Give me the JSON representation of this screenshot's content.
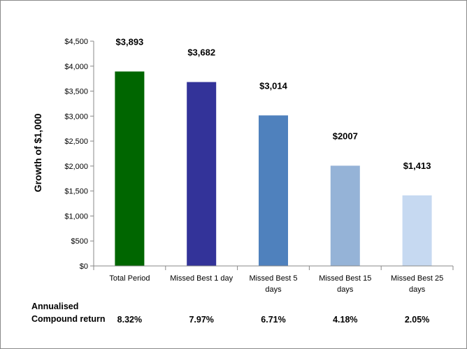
{
  "chart_data": {
    "type": "bar",
    "categories": [
      [
        "Total Period"
      ],
      [
        "Missed Best 1  day"
      ],
      [
        "Missed Best  5",
        "days"
      ],
      [
        "Missed Best 15",
        "days"
      ],
      [
        "Missed Best 25",
        "days"
      ]
    ],
    "values": [
      3893,
      3682,
      3014,
      2007,
      1413
    ],
    "data_labels": [
      "$3,893",
      "$3,682",
      "$3,014",
      "$2007",
      "$1,413"
    ],
    "colors": [
      "#006600",
      "#333399",
      "#4f81bd",
      "#95b3d7",
      "#c6d9f1"
    ],
    "ylabel": "Growth of $1,000",
    "ylim": [
      0,
      4500
    ],
    "yticks": [
      0,
      500,
      1000,
      1500,
      2000,
      2500,
      3000,
      3500,
      4000,
      4500
    ],
    "ytick_labels": [
      "$0",
      "$500",
      "$1,000",
      "$1,500",
      "$2,000",
      "$2,500",
      "$3,000",
      "$3,500",
      "$4,000",
      "$4,500"
    ],
    "grid": false,
    "legend": "none"
  },
  "returns": {
    "label_line1": "Annualised",
    "label_line2": "Compound return",
    "values": [
      "8.32%",
      "7.97%",
      "6.71%",
      "4.18%",
      "2.05%"
    ]
  }
}
